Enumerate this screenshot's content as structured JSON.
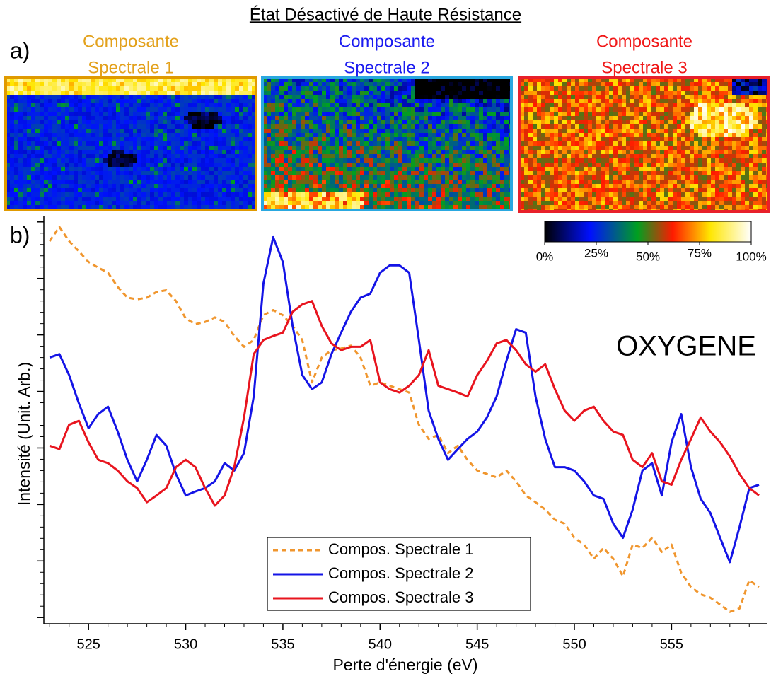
{
  "header": {
    "title": "État Désactivé de Haute Résistance",
    "label_a": "a)",
    "label_b": "b)"
  },
  "panels": [
    {
      "title_lines": [
        "Composante",
        "Spectrale 1"
      ],
      "color": "#e3a11b",
      "frame_color": "#e09a00"
    },
    {
      "title_lines": [
        "Composante",
        "Spectrale 2"
      ],
      "color": "#1c1cf0",
      "frame_color": "#2aa8e0"
    },
    {
      "title_lines": [
        "Composante",
        "Spectrale 3"
      ],
      "color": "#f01818",
      "frame_color": "#e8202a"
    }
  ],
  "colorbar": {
    "ticks": [
      {
        "value": 0,
        "label": "0%"
      },
      {
        "value": 25,
        "label": "25%"
      },
      {
        "value": 50,
        "label": "50%"
      },
      {
        "value": 75,
        "label": "75%"
      },
      {
        "value": 100,
        "label": "100%"
      }
    ],
    "lim": [
      0,
      100
    ]
  },
  "chart_data": {
    "type": "line",
    "annotation": "OXYGENE",
    "x_label": "Perte d'énergie (eV)",
    "y_label": "Intensité (Unit. Arb.)",
    "xlim": [
      522.7,
      559.9
    ],
    "xticks": [
      525,
      530,
      535,
      540,
      545,
      550,
      555
    ],
    "ylim": [
      -1.1,
      71.1
    ],
    "yticks": [
      0,
      10,
      20,
      30,
      40,
      50,
      60,
      70
    ],
    "legend": "bottom-center",
    "x": [
      523,
      523.5,
      524,
      524.5,
      525,
      525.5,
      526,
      526.5,
      527,
      527.5,
      528,
      528.5,
      529,
      529.5,
      530,
      530.5,
      531,
      531.5,
      532,
      532.5,
      533,
      533.5,
      534,
      534.5,
      535,
      535.5,
      536,
      536.5,
      537,
      537.5,
      538,
      538.5,
      539,
      539.5,
      540,
      540.5,
      541,
      541.5,
      542,
      542.5,
      543,
      543.5,
      544,
      544.5,
      545,
      545.5,
      546,
      546.5,
      547,
      547.5,
      548,
      548.5,
      549,
      549.5,
      550,
      550.5,
      551,
      551.5,
      552,
      552.5,
      553,
      553.5,
      554,
      554.5,
      555,
      555.5,
      556,
      556.5,
      557,
      557.5,
      558,
      558.5,
      559,
      559.5
    ],
    "series": [
      {
        "name": "Compos. Spectrale 1",
        "color": "#f0962e",
        "line_style": "dashed",
        "values": [
          66.6,
          69.1,
          66.6,
          64.8,
          62.9,
          61.9,
          61.0,
          58.5,
          56.6,
          56.3,
          56.6,
          57.6,
          57.9,
          56.0,
          52.9,
          51.9,
          52.3,
          53.1,
          52.3,
          49.8,
          47.9,
          49.1,
          53.5,
          54.4,
          53.5,
          51.6,
          49.1,
          41.6,
          46.0,
          47.3,
          47.6,
          48.1,
          46.0,
          41.0,
          41.6,
          41.0,
          40.4,
          39.8,
          34.1,
          31.6,
          32.3,
          29.1,
          30.4,
          27.9,
          26.0,
          25.4,
          24.8,
          26.0,
          24.1,
          21.6,
          20.4,
          19.1,
          17.3,
          16.6,
          14.1,
          12.9,
          10.4,
          12.3,
          10.4,
          7.3,
          12.9,
          12.3,
          14.1,
          11.6,
          12.9,
          7.9,
          5.4,
          4.1,
          3.5,
          2.3,
          1.0,
          1.6,
          6.6,
          5.4
        ]
      },
      {
        "name": "Compos. Spectrale 2",
        "color": "#1414e6",
        "line_style": "solid",
        "values": [
          46.0,
          46.6,
          42.9,
          37.9,
          33.5,
          36.0,
          37.3,
          32.9,
          27.9,
          24.1,
          27.9,
          32.3,
          30.4,
          25.4,
          21.6,
          22.3,
          22.9,
          24.1,
          27.3,
          26.0,
          29.1,
          39.1,
          59.1,
          67.3,
          62.9,
          51.6,
          42.9,
          40.4,
          41.6,
          46.6,
          50.4,
          54.1,
          56.6,
          57.3,
          61.0,
          62.3,
          62.3,
          61.0,
          49.1,
          36.6,
          31.6,
          27.9,
          29.8,
          31.6,
          32.9,
          35.4,
          39.1,
          45.4,
          51.0,
          50.4,
          39.1,
          31.6,
          26.6,
          26.6,
          26.0,
          24.1,
          21.6,
          21.0,
          16.6,
          14.1,
          19.1,
          26.0,
          27.3,
          21.6,
          31.0,
          36.0,
          26.6,
          21.0,
          18.5,
          14.1,
          9.8,
          16.0,
          22.9,
          23.5
        ]
      },
      {
        "name": "Compos. Spectrale 3",
        "color": "#e8141e",
        "line_style": "solid",
        "values": [
          30.4,
          29.8,
          34.1,
          34.8,
          31.0,
          27.9,
          27.3,
          26.0,
          24.1,
          22.9,
          20.4,
          21.6,
          22.9,
          26.6,
          27.9,
          26.6,
          22.9,
          19.8,
          21.6,
          26.6,
          35.4,
          46.6,
          49.1,
          49.8,
          50.4,
          54.1,
          55.4,
          56.0,
          51.6,
          48.5,
          47.3,
          47.9,
          47.9,
          49.1,
          41.6,
          40.4,
          39.8,
          41.0,
          42.9,
          47.3,
          41.0,
          40.4,
          39.8,
          39.1,
          42.9,
          45.4,
          48.5,
          49.1,
          47.3,
          44.8,
          43.5,
          44.8,
          40.4,
          36.6,
          34.8,
          36.6,
          37.3,
          34.8,
          32.9,
          32.3,
          27.9,
          26.6,
          29.1,
          24.1,
          23.5,
          27.9,
          31.6,
          35.4,
          32.9,
          31.0,
          28.5,
          25.4,
          22.9,
          21.6
        ]
      }
    ]
  }
}
